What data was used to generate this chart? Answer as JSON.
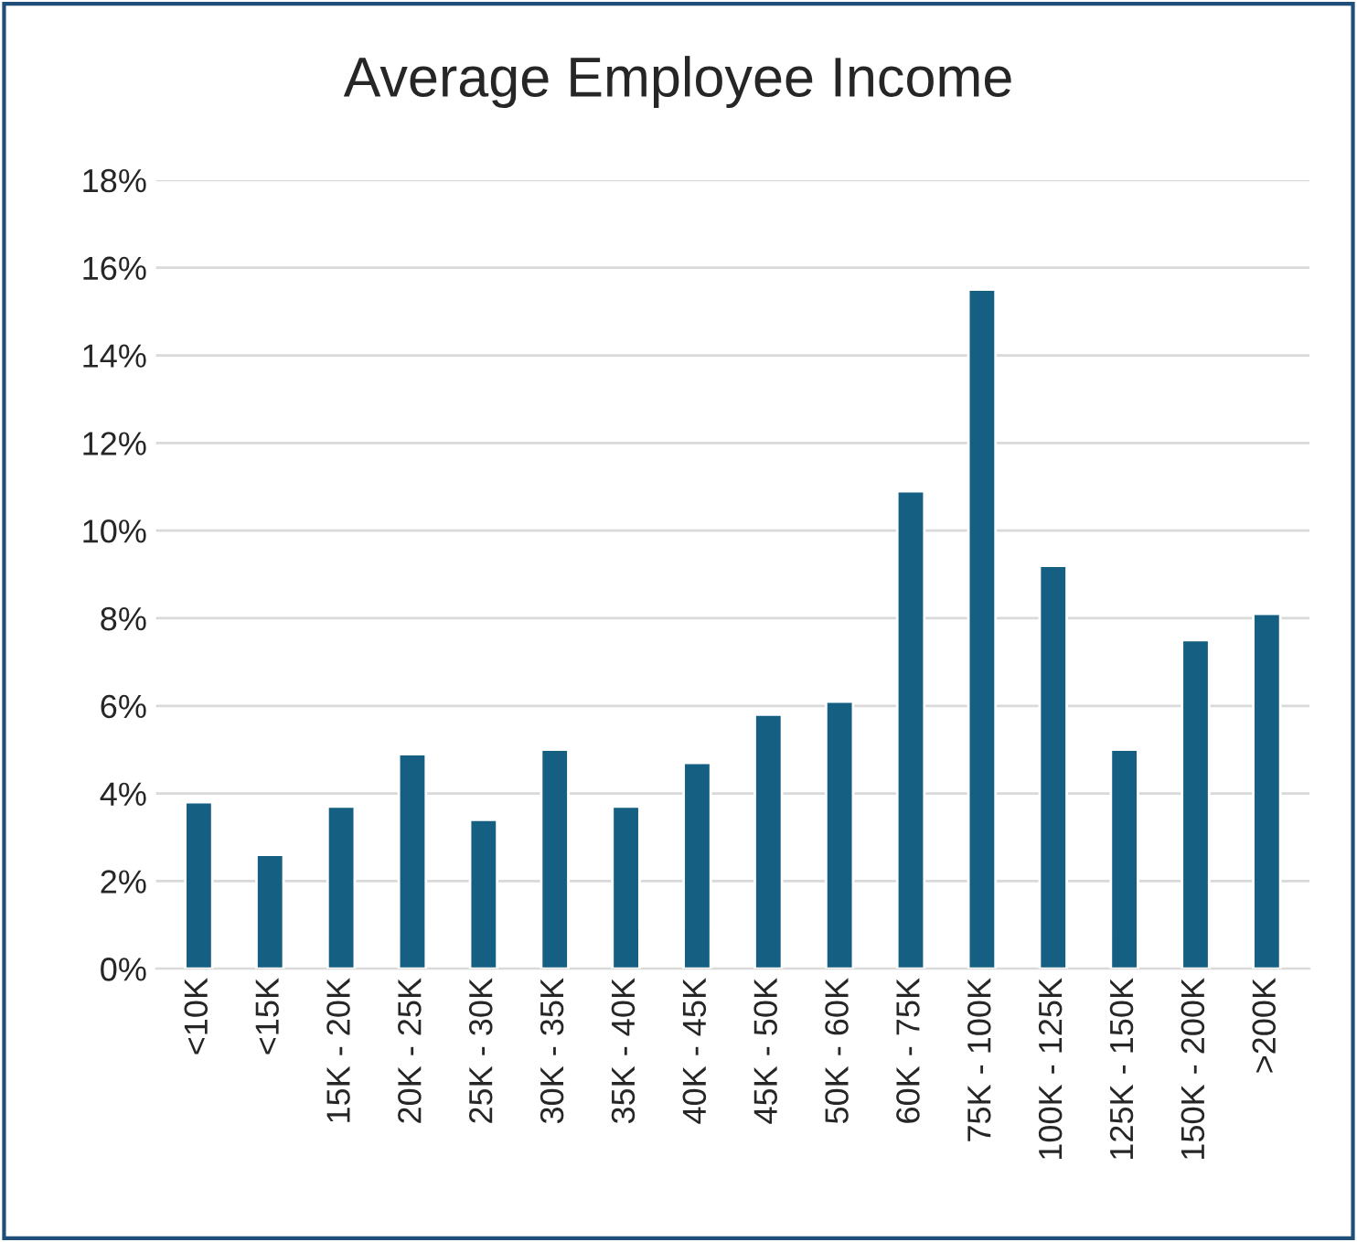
{
  "chart_data": {
    "type": "bar",
    "title": "Average Employee Income",
    "categories": [
      "<10K",
      "<15K",
      "15K - 20K",
      "20K - 25K",
      "25K - 30K",
      "30K - 35K",
      "35K - 40K",
      "40K - 45K",
      "45K - 50K",
      "50K - 60K",
      "60K - 75K",
      "75K - 100K",
      "100K - 125K",
      "125K - 150K",
      "150K - 200K",
      ">200K"
    ],
    "values": [
      3.8,
      2.6,
      3.7,
      4.9,
      3.4,
      5.0,
      3.7,
      4.7,
      5.8,
      6.1,
      10.9,
      15.5,
      9.2,
      5.0,
      7.5,
      8.1
    ],
    "color": "#156082",
    "ylim": [
      0,
      18
    ],
    "yticks": [
      {
        "value": 0,
        "label": "0%"
      },
      {
        "value": 2,
        "label": "2%"
      },
      {
        "value": 4,
        "label": "4%"
      },
      {
        "value": 6,
        "label": "6%"
      },
      {
        "value": 8,
        "label": "8%"
      },
      {
        "value": 10,
        "label": "10%"
      },
      {
        "value": 12,
        "label": "12%"
      },
      {
        "value": 14,
        "label": "14%"
      },
      {
        "value": 16,
        "label": "16%"
      },
      {
        "value": 18,
        "label": "18%"
      }
    ],
    "grid": "y",
    "legend": false
  }
}
